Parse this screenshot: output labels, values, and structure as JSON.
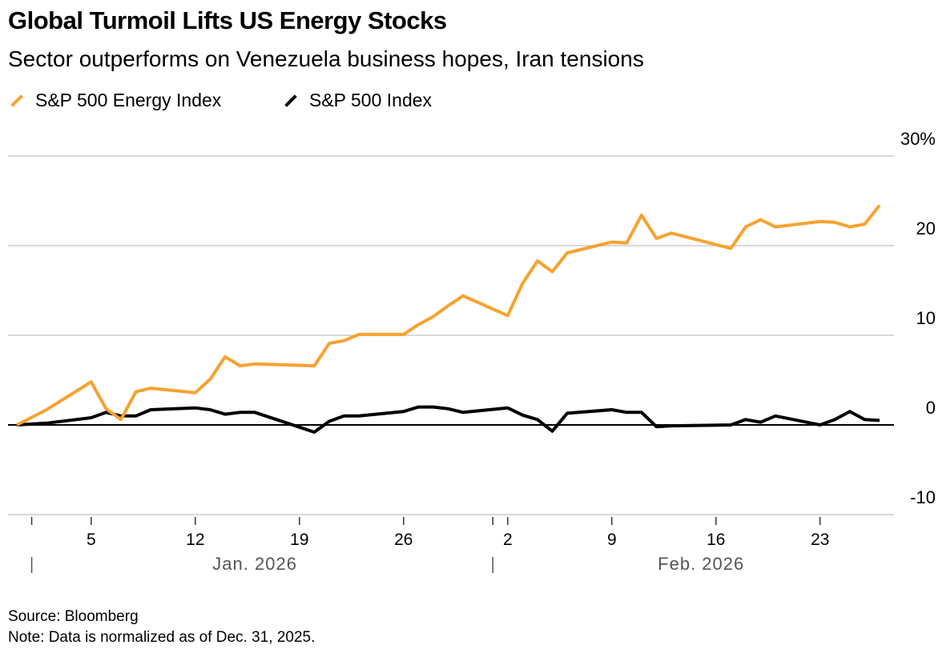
{
  "title": "Global Turmoil Lifts US Energy Stocks",
  "subtitle": "Sector outperforms on Venezuela business hopes, Iran tensions",
  "source": "Source: Bloomberg",
  "note": "Note: Data is normalized as of Dec. 31, 2025.",
  "chart_data": {
    "type": "line",
    "title": "Global Turmoil Lifts US Energy Stocks",
    "ylabel": "",
    "xlabel": "",
    "ylim": [
      -10,
      30
    ],
    "yticks": [
      -10,
      0,
      10,
      20,
      30
    ],
    "ytick_labels": [
      "-10",
      "0",
      "10",
      "20",
      "30%"
    ],
    "grid": true,
    "legend": "top-left",
    "xtick_labels": [
      {
        "date": "2026-01-01",
        "label": ""
      },
      {
        "date": "2026-01-05",
        "label": "5"
      },
      {
        "date": "2026-01-12",
        "label": "12"
      },
      {
        "date": "2026-01-19",
        "label": "19"
      },
      {
        "date": "2026-01-26",
        "label": "26"
      },
      {
        "date": "2026-02-01",
        "label": ""
      },
      {
        "date": "2026-02-02",
        "label": "2"
      },
      {
        "date": "2026-02-09",
        "label": "9"
      },
      {
        "date": "2026-02-16",
        "label": "16"
      },
      {
        "date": "2026-02-23",
        "label": "23"
      }
    ],
    "month_labels": [
      {
        "date": "2026-01-16",
        "label": "Jan. 2026"
      },
      {
        "date": "2026-02-15",
        "label": "Feb. 2026"
      }
    ],
    "x": [
      "2025-12-31",
      "2026-01-02",
      "2026-01-05",
      "2026-01-06",
      "2026-01-07",
      "2026-01-08",
      "2026-01-09",
      "2026-01-12",
      "2026-01-13",
      "2026-01-14",
      "2026-01-15",
      "2026-01-16",
      "2026-01-20",
      "2026-01-21",
      "2026-01-22",
      "2026-01-23",
      "2026-01-26",
      "2026-01-27",
      "2026-01-28",
      "2026-01-29",
      "2026-01-30",
      "2026-02-02",
      "2026-02-03",
      "2026-02-04",
      "2026-02-05",
      "2026-02-06",
      "2026-02-09",
      "2026-02-10",
      "2026-02-11",
      "2026-02-12",
      "2026-02-13",
      "2026-02-17",
      "2026-02-18",
      "2026-02-19",
      "2026-02-20",
      "2026-02-23",
      "2026-02-24",
      "2026-02-25",
      "2026-02-26",
      "2026-02-27"
    ],
    "series": [
      {
        "name": "S&P 500 Energy Index",
        "color": "#f7a230",
        "values": [
          0,
          1.7,
          4.8,
          1.8,
          0.6,
          3.7,
          4.1,
          3.6,
          5.1,
          7.6,
          6.6,
          6.8,
          6.6,
          9.1,
          9.4,
          10.1,
          10.1,
          11.2,
          12.1,
          13.3,
          14.4,
          12.2,
          15.8,
          18.3,
          17.1,
          19.2,
          20.4,
          20.3,
          23.4,
          20.8,
          21.4,
          19.7,
          22.1,
          22.9,
          22.1,
          22.7,
          22.6,
          22.1,
          22.4,
          24.5
        ]
      },
      {
        "name": "S&P 500 Index",
        "color": "#000000",
        "values": [
          0,
          0.2,
          0.8,
          1.4,
          1.0,
          1.0,
          1.7,
          1.9,
          1.7,
          1.2,
          1.4,
          1.4,
          -0.8,
          0.4,
          1.0,
          1.0,
          1.5,
          2.0,
          2.0,
          1.8,
          1.4,
          1.9,
          1.1,
          0.6,
          -0.7,
          1.3,
          1.7,
          1.4,
          1.4,
          -0.2,
          -0.1,
          0.0,
          0.6,
          0.3,
          1.0,
          0.0,
          0.6,
          1.5,
          0.6,
          0.5
        ]
      }
    ]
  }
}
